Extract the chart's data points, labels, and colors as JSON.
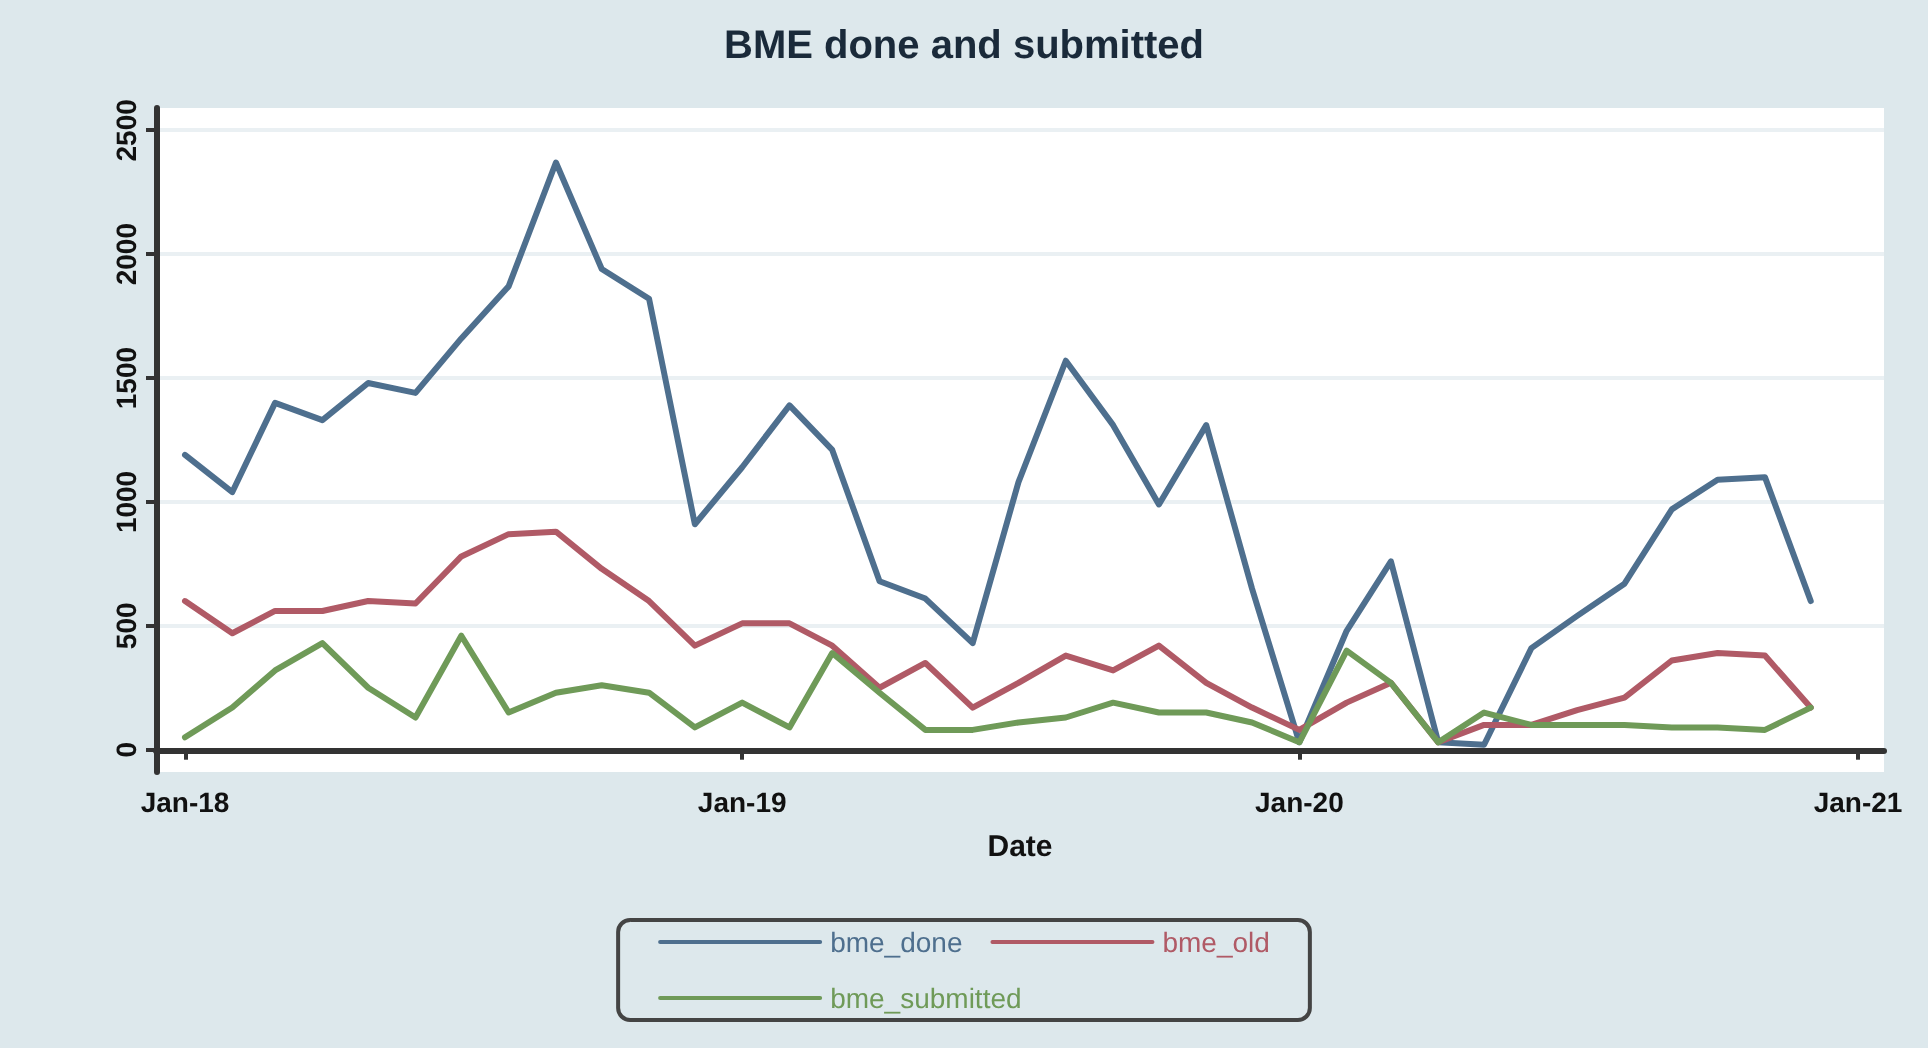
{
  "chart_data": {
    "type": "line",
    "title": "BME done and submitted",
    "xlabel": "Date",
    "x": [
      "2018-01",
      "2018-02",
      "2018-03",
      "2018-04",
      "2018-05",
      "2018-06",
      "2018-07",
      "2018-08",
      "2018-09",
      "2018-10",
      "2018-11",
      "2018-12",
      "2019-01",
      "2019-02",
      "2019-03",
      "2019-04",
      "2019-05",
      "2019-06",
      "2019-07",
      "2019-08",
      "2019-09",
      "2019-10",
      "2019-11",
      "2019-12",
      "2020-01",
      "2020-02",
      "2020-03",
      "2020-04",
      "2020-05",
      "2020-06",
      "2020-07",
      "2020-08",
      "2020-09",
      "2020-10",
      "2020-11",
      "2020-12"
    ],
    "series": [
      {
        "name": "bme_done",
        "color": "#4e6f8e",
        "values": [
          1190,
          1040,
          1400,
          1330,
          1480,
          1440,
          1660,
          1870,
          2370,
          1940,
          1820,
          910,
          1140,
          1390,
          1210,
          680,
          610,
          430,
          1080,
          1570,
          1310,
          990,
          1310,
          650,
          30,
          480,
          760,
          30,
          20,
          410,
          540,
          670,
          970,
          1090,
          1100,
          600
        ]
      },
      {
        "name": "bme_old",
        "color": "#b05a66",
        "values": [
          600,
          470,
          560,
          560,
          600,
          590,
          780,
          870,
          880,
          730,
          600,
          420,
          510,
          510,
          420,
          250,
          350,
          170,
          270,
          380,
          320,
          420,
          270,
          170,
          80,
          190,
          270,
          30,
          100,
          100,
          160,
          210,
          360,
          390,
          380,
          170
        ]
      },
      {
        "name": "bme_submitted",
        "color": "#6f9a58",
        "values": [
          50,
          170,
          320,
          430,
          250,
          130,
          460,
          150,
          230,
          260,
          230,
          90,
          190,
          90,
          390,
          230,
          80,
          80,
          110,
          130,
          190,
          150,
          150,
          110,
          30,
          400,
          270,
          30,
          150,
          100,
          100,
          100,
          90,
          90,
          80,
          170
        ]
      }
    ],
    "xlim": [
      "2017-12-13",
      "2021-01-18"
    ],
    "xticks": [
      {
        "value": "2018-01",
        "label": "Jan-18"
      },
      {
        "value": "2019-01",
        "label": "Jan-19"
      },
      {
        "value": "2020-01",
        "label": "Jan-20"
      },
      {
        "value": "2021-01",
        "label": "Jan-21"
      }
    ],
    "ylim": [
      -90,
      2590
    ],
    "yticks": [
      0,
      500,
      1000,
      1500,
      2000,
      2500
    ],
    "grid": "y",
    "legend": "bottom",
    "marker": "none",
    "line_style": "solid"
  }
}
